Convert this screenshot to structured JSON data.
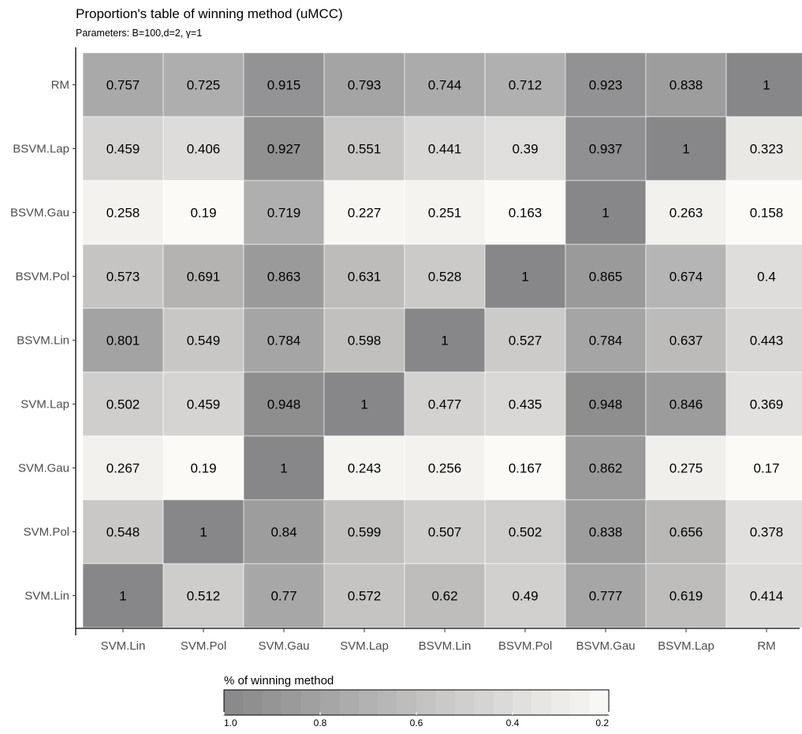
{
  "chart_data": {
    "type": "heatmap",
    "title": "Proportion's table of winning method (uMCC)",
    "subtitle": "Parameters: B=100,d=2, γ=1",
    "x_categories": [
      "SVM.Lin",
      "SVM.Pol",
      "SVM.Gau",
      "SVM.Lap",
      "BSVM.Lin",
      "BSVM.Pol",
      "BSVM.Gau",
      "BSVM.Lap",
      "RM"
    ],
    "y_categories": [
      "RM",
      "BSVM.Lap",
      "BSVM.Gau",
      "BSVM.Pol",
      "BSVM.Lin",
      "SVM.Lap",
      "SVM.Gau",
      "SVM.Pol",
      "SVM.Lin"
    ],
    "values": [
      [
        "0.757",
        "0.725",
        "0.915",
        "0.793",
        "0.744",
        "0.712",
        "0.923",
        "0.838",
        "1"
      ],
      [
        "0.459",
        "0.406",
        "0.927",
        "0.551",
        "0.441",
        "0.39",
        "0.937",
        "1",
        "0.323"
      ],
      [
        "0.258",
        "0.19",
        "0.719",
        "0.227",
        "0.251",
        "0.163",
        "1",
        "0.263",
        "0.158"
      ],
      [
        "0.573",
        "0.691",
        "0.863",
        "0.631",
        "0.528",
        "1",
        "0.865",
        "0.674",
        "0.4"
      ],
      [
        "0.801",
        "0.549",
        "0.784",
        "0.598",
        "1",
        "0.527",
        "0.784",
        "0.637",
        "0.443"
      ],
      [
        "0.502",
        "0.459",
        "0.948",
        "1",
        "0.477",
        "0.435",
        "0.948",
        "0.846",
        "0.369"
      ],
      [
        "0.267",
        "0.19",
        "1",
        "0.243",
        "0.256",
        "0.167",
        "0.862",
        "0.275",
        "0.17"
      ],
      [
        "0.548",
        "1",
        "0.84",
        "0.599",
        "0.507",
        "0.502",
        "0.838",
        "0.656",
        "0.378"
      ],
      [
        "1",
        "0.512",
        "0.77",
        "0.572",
        "0.62",
        "0.49",
        "0.777",
        "0.619",
        "0.414"
      ]
    ],
    "color_scale": {
      "low": 0.2,
      "high": 1.0,
      "low_color": "#fbfaf6",
      "high_color": "#878688"
    },
    "legend": {
      "title": "% of winning method",
      "position": "bottom",
      "ticks": [
        "1.0",
        "0.8",
        "0.6",
        "0.4",
        "0.2"
      ],
      "tick_values": [
        1.0,
        0.8,
        0.6,
        0.4,
        0.2
      ]
    }
  }
}
